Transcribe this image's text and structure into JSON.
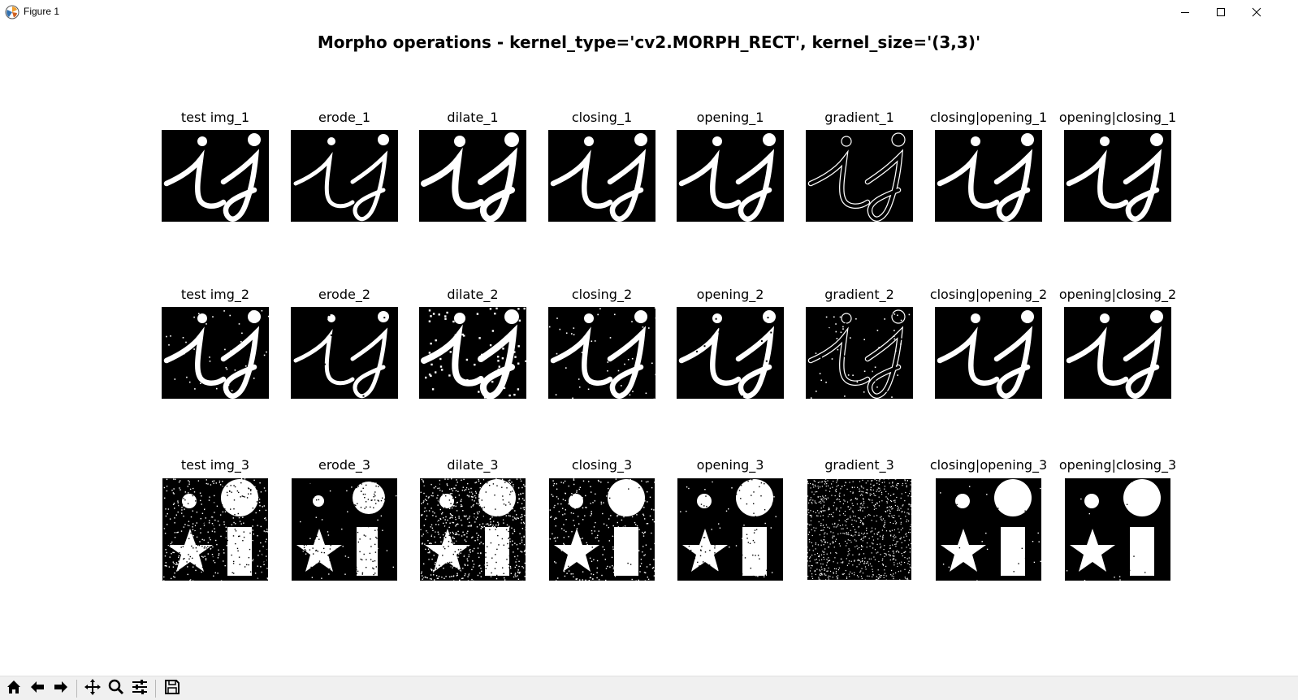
{
  "window": {
    "title": "Figure 1",
    "controls": [
      "minimize-icon",
      "maximize-icon",
      "close-icon"
    ]
  },
  "figure": {
    "title": "Morpho operations - kernel_type='cv2.MORPH_RECT', kernel_size='(3,3)'"
  },
  "rows": [
    {
      "panels": [
        "test img_1",
        "erode_1",
        "dilate_1",
        "closing_1",
        "opening_1",
        "gradient_1",
        "closing|opening_1",
        "opening|closing_1"
      ]
    },
    {
      "panels": [
        "test img_2",
        "erode_2",
        "dilate_2",
        "closing_2",
        "opening_2",
        "gradient_2",
        "closing|opening_2",
        "opening|closing_2"
      ]
    },
    {
      "panels": [
        "test img_3",
        "erode_3",
        "dilate_3",
        "closing_3",
        "opening_3",
        "gradient_3",
        "closing|opening_3",
        "opening|closing_3"
      ]
    }
  ],
  "toolbar": {
    "buttons": [
      "home-icon",
      "back-arrow-icon",
      "forward-arrow-icon",
      "pan-icon",
      "zoom-icon",
      "configure-subplots-icon",
      "save-icon"
    ]
  },
  "colors": {
    "background": "#ffffff",
    "image_background": "#000000",
    "foreground": "#ffffff",
    "toolbar": "#f0f0f0"
  }
}
